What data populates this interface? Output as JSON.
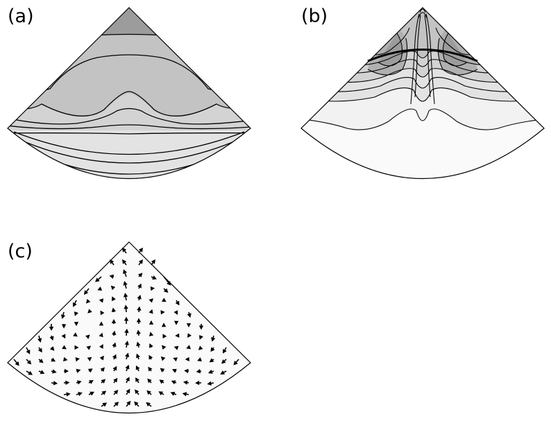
{
  "panels": [
    {
      "id": "a",
      "label": "(a)",
      "kind": "contour"
    },
    {
      "id": "b",
      "label": "(b)",
      "kind": "contour"
    },
    {
      "id": "c",
      "label": "(c)",
      "kind": "vector-field"
    }
  ],
  "colors": {
    "outline": "#000000",
    "fill_lightest": "#fafafa",
    "fill_light": "#f2f2f2",
    "fill_mid_light": "#e3e3e3",
    "fill_mid": "#d3d3d3",
    "fill_mid_dark": "#c3c3c3",
    "fill_dark": "#b0b0b0",
    "fill_darkest": "#9c9c9c"
  }
}
